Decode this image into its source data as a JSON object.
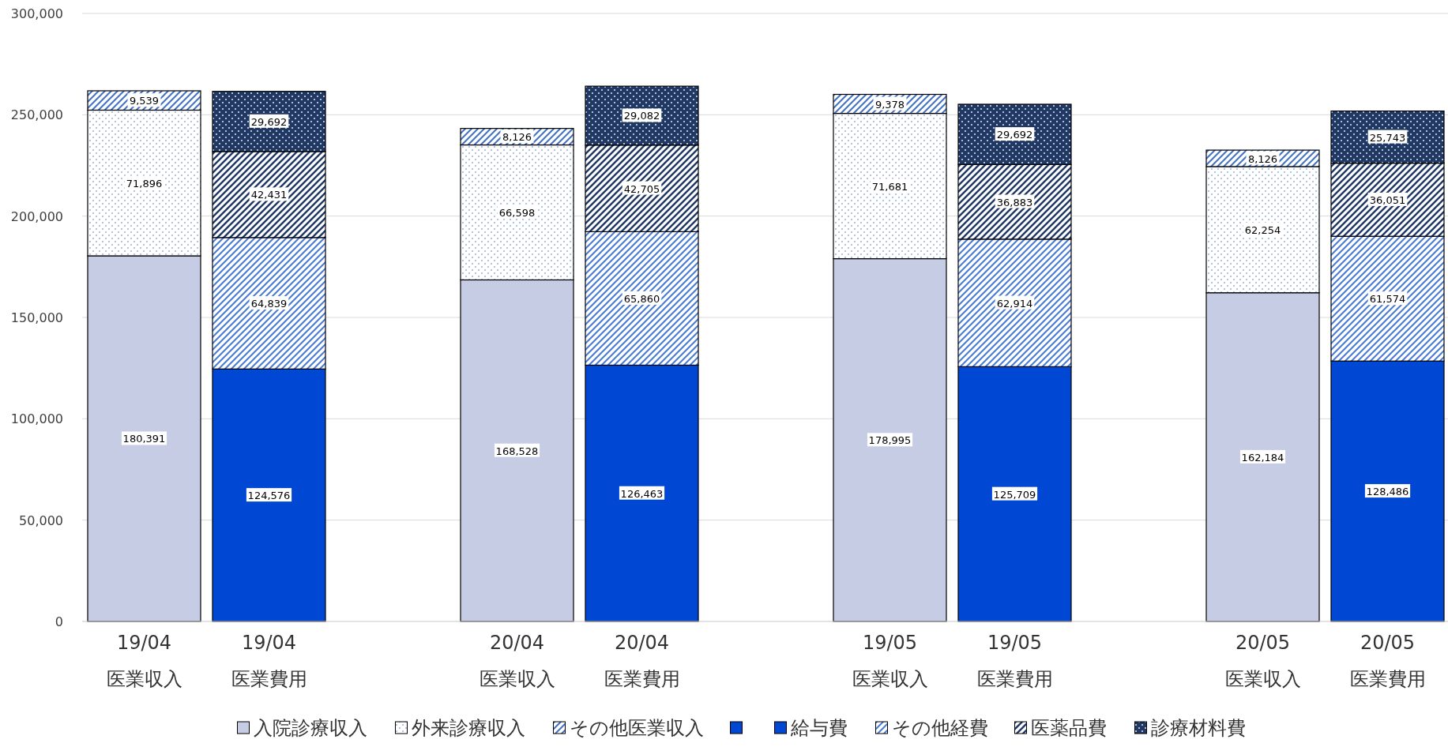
{
  "chart_data": {
    "type": "bar",
    "stacked": true,
    "categories": [
      "19/04\n医業収入",
      "19/04\n医業費用",
      "20/04\n医業収入",
      "20/04\n医業費用",
      "19/05\n医業収入",
      "19/05\n医業費用",
      "20/05\n医業収入",
      "20/05\n医業費用"
    ],
    "series": [
      {
        "name": "入院診療収入",
        "color": "#c5cce3",
        "values": [
          180391,
          null,
          168528,
          null,
          178995,
          null,
          162184,
          null
        ],
        "value_labels": [
          "180,391",
          null,
          "168,528",
          null,
          "178,995",
          null,
          "162,184",
          null
        ]
      },
      {
        "name": "外来診療収入",
        "color": "#4472c4",
        "values": [
          71896,
          null,
          66598,
          null,
          71681,
          null,
          62254,
          null
        ],
        "value_labels": [
          "71,896",
          null,
          "66,598",
          null,
          "71,681",
          null,
          "62,254",
          null
        ]
      },
      {
        "name": "その他医業収入",
        "color": "#4472c4",
        "values": [
          9539,
          null,
          8126,
          null,
          9378,
          null,
          8126,
          null
        ],
        "value_labels": [
          "9,539",
          null,
          "8,126",
          null,
          "9,378",
          null,
          "8,126",
          null
        ]
      },
      {
        "color": "#0047d4",
        "values": [
          null,
          null,
          null,
          null,
          null,
          null,
          null,
          null
        ]
      },
      {
        "name": "給与費",
        "color": "#0047d4",
        "values": [
          null,
          124576,
          null,
          126463,
          null,
          125709,
          null,
          128486
        ],
        "value_labels": [
          null,
          "124,576",
          null,
          "126,463",
          null,
          "125,709",
          null,
          "128,486"
        ]
      },
      {
        "name": "その他経費",
        "color": "#4a7bd8",
        "values": [
          null,
          64839,
          null,
          65860,
          null,
          62914,
          null,
          61574
        ],
        "value_labels": [
          null,
          "64,839",
          null,
          "65,860",
          null,
          "62,914",
          null,
          "61,574"
        ]
      },
      {
        "name": "医薬品費",
        "color": "#1f3864",
        "values": [
          null,
          42431,
          null,
          42705,
          null,
          36883,
          null,
          36051
        ],
        "value_labels": [
          null,
          "42,431",
          null,
          "42,705",
          null,
          "36,883",
          null,
          "36,051"
        ]
      },
      {
        "name": "診療材料費",
        "color": "#1f3864",
        "values": [
          null,
          29692,
          null,
          29082,
          null,
          29692,
          null,
          25743
        ],
        "value_labels": [
          null,
          "29,692",
          null,
          "29,082",
          null,
          "29,692",
          null,
          "25,743"
        ]
      }
    ],
    "ylim": [
      0,
      300000
    ],
    "yticks": [
      {
        "value": 0,
        "label": "0"
      },
      {
        "value": 50000,
        "label": "50,000"
      },
      {
        "value": 100000,
        "label": "100,000"
      },
      {
        "value": 150000,
        "label": "150,000"
      },
      {
        "value": 200000,
        "label": "200,000"
      },
      {
        "value": 250000,
        "label": "250,000"
      },
      {
        "value": 300000,
        "label": "300,000"
      }
    ],
    "grid": "y",
    "legend": "bottom"
  }
}
